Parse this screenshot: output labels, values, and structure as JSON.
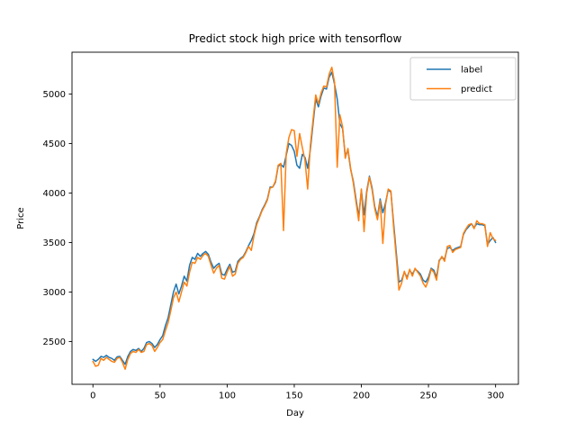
{
  "figure": {
    "background": "#ffffff",
    "border_color": "#000000"
  },
  "chart_data": {
    "type": "line",
    "title": "Predict stock high price with tensorflow",
    "xlabel": "Day",
    "ylabel": "Price",
    "grid": false,
    "xlim": [
      -15.6,
      317
    ],
    "ylim": [
      2068,
      5422
    ],
    "x_ticks": [
      0,
      50,
      100,
      150,
      200,
      250,
      300
    ],
    "y_ticks": [
      2500,
      3000,
      3500,
      4000,
      4500,
      5000
    ],
    "legend": {
      "position": "upper right",
      "entries": [
        "label",
        "predict"
      ],
      "border_color": "#cccccc",
      "background": "#ffffff"
    },
    "x": [
      0,
      2,
      4,
      6,
      8,
      10,
      12,
      14,
      16,
      18,
      20,
      22,
      24,
      26,
      28,
      30,
      32,
      34,
      36,
      38,
      40,
      42,
      44,
      46,
      48,
      50,
      52,
      54,
      56,
      58,
      60,
      62,
      64,
      66,
      68,
      70,
      72,
      74,
      76,
      78,
      80,
      82,
      84,
      86,
      88,
      90,
      92,
      94,
      96,
      98,
      100,
      102,
      104,
      106,
      108,
      110,
      112,
      114,
      116,
      118,
      120,
      122,
      124,
      126,
      128,
      130,
      132,
      134,
      136,
      138,
      140,
      142,
      144,
      146,
      148,
      150,
      152,
      154,
      156,
      158,
      160,
      162,
      164,
      166,
      168,
      170,
      172,
      174,
      176,
      178,
      180,
      182,
      184,
      186,
      188,
      190,
      192,
      194,
      196,
      198,
      200,
      202,
      204,
      206,
      208,
      210,
      212,
      214,
      216,
      218,
      220,
      222,
      224,
      226,
      228,
      230,
      232,
      234,
      236,
      238,
      240,
      242,
      244,
      246,
      248,
      250,
      252,
      254,
      256,
      258,
      260,
      262,
      264,
      266,
      268,
      270,
      272,
      274,
      276,
      278,
      280,
      282,
      284,
      286,
      288,
      290,
      292,
      294,
      296,
      298,
      300
    ],
    "series": [
      {
        "name": "label",
        "color": "#1f77b4",
        "line_width": 1.5,
        "values": [
          2320,
          2300,
          2320,
          2350,
          2340,
          2360,
          2340,
          2330,
          2310,
          2345,
          2350,
          2310,
          2270,
          2350,
          2400,
          2420,
          2410,
          2430,
          2400,
          2430,
          2490,
          2500,
          2480,
          2440,
          2470,
          2520,
          2560,
          2660,
          2740,
          2870,
          3000,
          3080,
          2980,
          3060,
          3160,
          3110,
          3270,
          3350,
          3330,
          3390,
          3360,
          3390,
          3410,
          3380,
          3300,
          3240,
          3270,
          3290,
          3180,
          3170,
          3230,
          3280,
          3200,
          3210,
          3310,
          3340,
          3360,
          3410,
          3470,
          3520,
          3590,
          3700,
          3760,
          3830,
          3880,
          3940,
          4060,
          4060,
          4110,
          4270,
          4290,
          4260,
          4380,
          4500,
          4480,
          4420,
          4280,
          4250,
          4390,
          4360,
          4250,
          4440,
          4700,
          4950,
          4870,
          4980,
          5060,
          5050,
          5170,
          5220,
          5100,
          4950,
          4700,
          4650,
          4380,
          4430,
          4240,
          4120,
          3940,
          3760,
          4030,
          3780,
          4020,
          4170,
          4050,
          3860,
          3760,
          3940,
          3800,
          3900,
          4030,
          4010,
          3700,
          3400,
          3100,
          3120,
          3200,
          3150,
          3220,
          3180,
          3230,
          3210,
          3180,
          3120,
          3100,
          3150,
          3240,
          3220,
          3150,
          3320,
          3350,
          3330,
          3440,
          3450,
          3420,
          3440,
          3450,
          3460,
          3580,
          3630,
          3660,
          3690,
          3650,
          3690,
          3680,
          3680,
          3670,
          3480,
          3520,
          3550,
          3500
        ]
      },
      {
        "name": "predict",
        "color": "#ff7f0e",
        "line_width": 1.5,
        "values": [
          2300,
          2250,
          2260,
          2330,
          2310,
          2340,
          2320,
          2300,
          2290,
          2330,
          2340,
          2290,
          2220,
          2320,
          2380,
          2400,
          2390,
          2420,
          2390,
          2400,
          2470,
          2480,
          2460,
          2400,
          2440,
          2490,
          2520,
          2610,
          2690,
          2810,
          2940,
          3000,
          2900,
          3000,
          3100,
          3060,
          3200,
          3300,
          3290,
          3350,
          3330,
          3370,
          3390,
          3360,
          3270,
          3190,
          3240,
          3270,
          3140,
          3130,
          3200,
          3260,
          3160,
          3180,
          3290,
          3330,
          3350,
          3400,
          3460,
          3420,
          3570,
          3680,
          3750,
          3820,
          3870,
          3930,
          4050,
          4060,
          4120,
          4280,
          4300,
          3620,
          4400,
          4560,
          4640,
          4630,
          4370,
          4600,
          4460,
          4330,
          4040,
          4480,
          4740,
          4990,
          4900,
          5010,
          5080,
          5070,
          5200,
          5270,
          5120,
          4260,
          4790,
          4670,
          4350,
          4450,
          4250,
          4100,
          3910,
          3720,
          4040,
          3610,
          4000,
          4160,
          4030,
          3840,
          3730,
          3920,
          3490,
          3880,
          4040,
          4020,
          3660,
          3350,
          3020,
          3090,
          3210,
          3130,
          3230,
          3160,
          3240,
          3200,
          3160,
          3090,
          3050,
          3120,
          3230,
          3200,
          3120,
          3310,
          3360,
          3310,
          3460,
          3470,
          3400,
          3430,
          3440,
          3450,
          3590,
          3640,
          3680,
          3690,
          3640,
          3720,
          3690,
          3690,
          3680,
          3460,
          3600,
          3540,
          3520
        ]
      }
    ]
  }
}
